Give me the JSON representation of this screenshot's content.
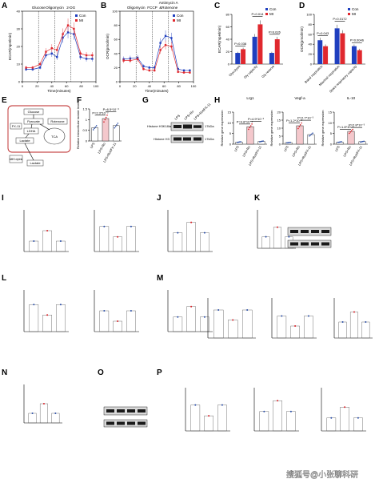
{
  "colors": {
    "con": "#1f3fbf",
    "mi": "#e0282e",
    "lps": "#2a4ea8",
    "red": "#d81f26",
    "pink": "#e86a78",
    "white": "#ffffff",
    "gray": "#888888"
  },
  "panel_letters": [
    "A",
    "B",
    "C",
    "D",
    "E",
    "F",
    "G",
    "H",
    "I",
    "J",
    "K",
    "L",
    "M",
    "N",
    "O",
    "P"
  ],
  "chart_data": [
    {
      "id": "A",
      "type": "line",
      "ylabel": "ECAR(mpH/min)",
      "xlabel": "Time(minutes)",
      "ylim": [
        0,
        40
      ],
      "yticks": [
        0,
        10,
        20,
        30,
        40
      ],
      "xlim": [
        0,
        100
      ],
      "xticks": [
        0,
        20,
        40,
        60,
        80,
        100
      ],
      "annotations": [
        "Glucose",
        "Oligomycin",
        "2-DG"
      ],
      "injections_x": [
        22,
        44,
        66
      ],
      "series": [
        {
          "name": "Con",
          "x": [
            5,
            14,
            24,
            32,
            40,
            47,
            55,
            62,
            70,
            79,
            87,
            95
          ],
          "y": [
            7,
            7,
            8,
            15,
            16,
            14,
            25,
            28,
            27,
            14,
            13,
            13
          ]
        },
        {
          "name": "MI",
          "x": [
            5,
            14,
            24,
            32,
            40,
            47,
            55,
            62,
            70,
            79,
            87,
            95
          ],
          "y": [
            8,
            8,
            10,
            17,
            19,
            18,
            27,
            32,
            30,
            16,
            15,
            15
          ]
        }
      ]
    },
    {
      "id": "B",
      "type": "line",
      "ylabel": "OCR(pmol/min)",
      "xlabel": "Time(minutes)",
      "ylim": [
        0,
        100
      ],
      "yticks": [
        0,
        20,
        40,
        60,
        80,
        100
      ],
      "xlim": [
        0,
        100
      ],
      "xticks": [
        0,
        20,
        40,
        60,
        80,
        100
      ],
      "annotations": [
        "Oligomycin",
        "FCCP",
        "Antimycin A",
        "&Rotenone"
      ],
      "injections_x": [
        22,
        44,
        66
      ],
      "series": [
        {
          "name": "Con",
          "x": [
            5,
            14,
            24,
            32,
            40,
            47,
            55,
            62,
            70,
            79,
            87,
            95
          ],
          "y": [
            32,
            33,
            34,
            22,
            20,
            20,
            55,
            65,
            62,
            18,
            16,
            16
          ]
        },
        {
          "name": "MI",
          "x": [
            5,
            14,
            24,
            32,
            40,
            47,
            55,
            62,
            70,
            79,
            87,
            95
          ],
          "y": [
            30,
            30,
            32,
            18,
            16,
            16,
            45,
            52,
            50,
            14,
            13,
            13
          ]
        }
      ]
    },
    {
      "id": "C",
      "type": "bar",
      "ylabel": "ECAR(mpH/min)",
      "ylim": [
        0,
        80
      ],
      "yticks": [
        0,
        20,
        40,
        60,
        80
      ],
      "categories": [
        "Glycolysis",
        "Gly capacity",
        "Gly reserve"
      ],
      "series": [
        {
          "name": "Con",
          "values": [
            18,
            44,
            18
          ]
        },
        {
          "name": "MI",
          "values": [
            24,
            64,
            40
          ]
        }
      ],
      "pvalues": [
        "P=0.038",
        "P=0.014",
        "P=0.026"
      ]
    },
    {
      "id": "D",
      "type": "bar",
      "ylabel": "OCR(pmol/min)",
      "ylim": [
        0,
        100
      ],
      "yticks": [
        0,
        20,
        40,
        60,
        80,
        100
      ],
      "categories": [
        "Basal respiration",
        "Maximal respiration",
        "Spare respiratory capacity"
      ],
      "series": [
        {
          "name": "Con",
          "values": [
            48,
            72,
            36
          ]
        },
        {
          "name": "MI",
          "values": [
            36,
            62,
            28
          ]
        }
      ],
      "pvalues": [
        "P=0.043",
        "P=0.0172",
        "P=0.0046"
      ]
    },
    {
      "id": "F",
      "type": "bar",
      "ylabel": "Relative intracellular lactate levels",
      "ylim": [
        0,
        1.5
      ],
      "yticks": [
        0.0,
        0.5,
        1.0,
        1.5
      ],
      "categories": [
        "LPS",
        "LPS+Ro",
        "LPS+Rot/FX-11"
      ],
      "values": [
        0.62,
        1.05,
        0.72
      ],
      "pvalues": [
        "P=2.3*10⁻³",
        "P=6.5*10⁻³"
      ]
    },
    {
      "id": "H-Lrg1",
      "type": "bar",
      "title": "Lrg1",
      "ylabel": "Relative gene expression",
      "ylim": [
        0,
        15
      ],
      "yticks": [
        0,
        5,
        10,
        15
      ],
      "categories": [
        "LPS",
        "LPS+Ro",
        "LPS+Rot/FX-11"
      ],
      "values": [
        1.0,
        8.2,
        1.3
      ],
      "pvalues": [
        "P=4.8*10⁻⁴",
        "P=4.9*10⁻³"
      ]
    },
    {
      "id": "H-Vegf-a",
      "type": "bar",
      "title": "Vegf-a",
      "ylabel": "Relative gene expression",
      "ylim": [
        0,
        20
      ],
      "yticks": [
        0,
        5,
        10,
        15,
        20
      ],
      "categories": [
        "LPS",
        "LPS+Ro",
        "LPS+Rot/FX-11"
      ],
      "values": [
        1.0,
        11.5,
        6.0
      ],
      "pvalues": [
        "P=1.2*10⁻³",
        "P=2.7*10⁻³"
      ]
    },
    {
      "id": "H-IL-10",
      "type": "bar",
      "title": "IL-10",
      "ylabel": "Relative gene expression",
      "ylim": [
        0,
        15
      ],
      "yticks": [
        0,
        5,
        10,
        15
      ],
      "categories": [
        "LPS",
        "LPS+Ro",
        "LPS+Rot/FX-11"
      ],
      "values": [
        1.0,
        6.0,
        1.2
      ],
      "pvalues": [
        "P=1.8*10⁻³",
        "P=2.8*10⁻³"
      ]
    }
  ],
  "panelE": {
    "boxes": [
      "Glucose",
      "Pyruvate",
      "Rotenone",
      "FX-11",
      "LDHA",
      "Lactate",
      "TCA",
      "ABS dylink",
      "Lactate"
    ]
  },
  "panelG": {
    "lanes": [
      "LPS",
      "LPS+Ro",
      "LPS+Rot/FX-11"
    ],
    "bands": [
      "Histone H3K18la",
      "Histone H3"
    ],
    "sizes": [
      "17kDa",
      "17kDa"
    ]
  },
  "watermark": "搜狐号@小张聊科研"
}
